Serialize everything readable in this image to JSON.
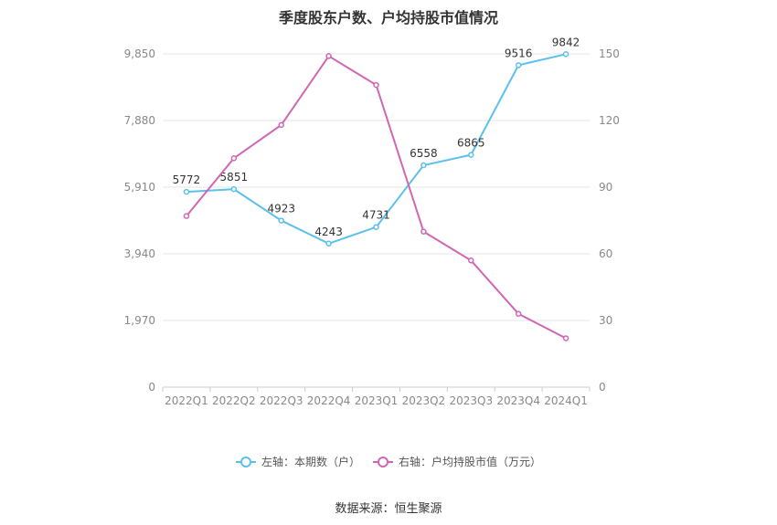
{
  "title": "季度股东户数、户均持股市值情况",
  "source": "数据来源：恒生聚源",
  "chart_data": {
    "type": "line",
    "categories": [
      "2022Q1",
      "2022Q2",
      "2022Q3",
      "2022Q4",
      "2023Q1",
      "2023Q2",
      "2023Q3",
      "2023Q4",
      "2024Q1"
    ],
    "left_axis": {
      "ticks": [
        "0",
        "1,970",
        "3,940",
        "5,910",
        "7,880",
        "9,850"
      ],
      "range": [
        0,
        9850
      ]
    },
    "right_axis": {
      "ticks": [
        "0",
        "30",
        "60",
        "90",
        "120",
        "150"
      ],
      "range": [
        0,
        150
      ]
    },
    "grid": true,
    "legend_position": "bottom",
    "series": [
      {
        "name": "左轴：本期数（户）",
        "axis": "left",
        "color": "#5bc0eb",
        "values": [
          5772,
          5851,
          4923,
          4243,
          4731,
          6558,
          6865,
          9516,
          9842
        ],
        "labels": [
          "5772",
          "5851",
          "4923",
          "4243",
          "4731",
          "6558",
          "6865",
          "9516",
          "9842"
        ]
      },
      {
        "name": "右轴：户均持股市值（万元）",
        "axis": "right",
        "color": "#d066b4",
        "values": [
          77,
          103,
          118,
          149,
          136,
          70,
          57,
          33,
          22
        ]
      }
    ]
  }
}
